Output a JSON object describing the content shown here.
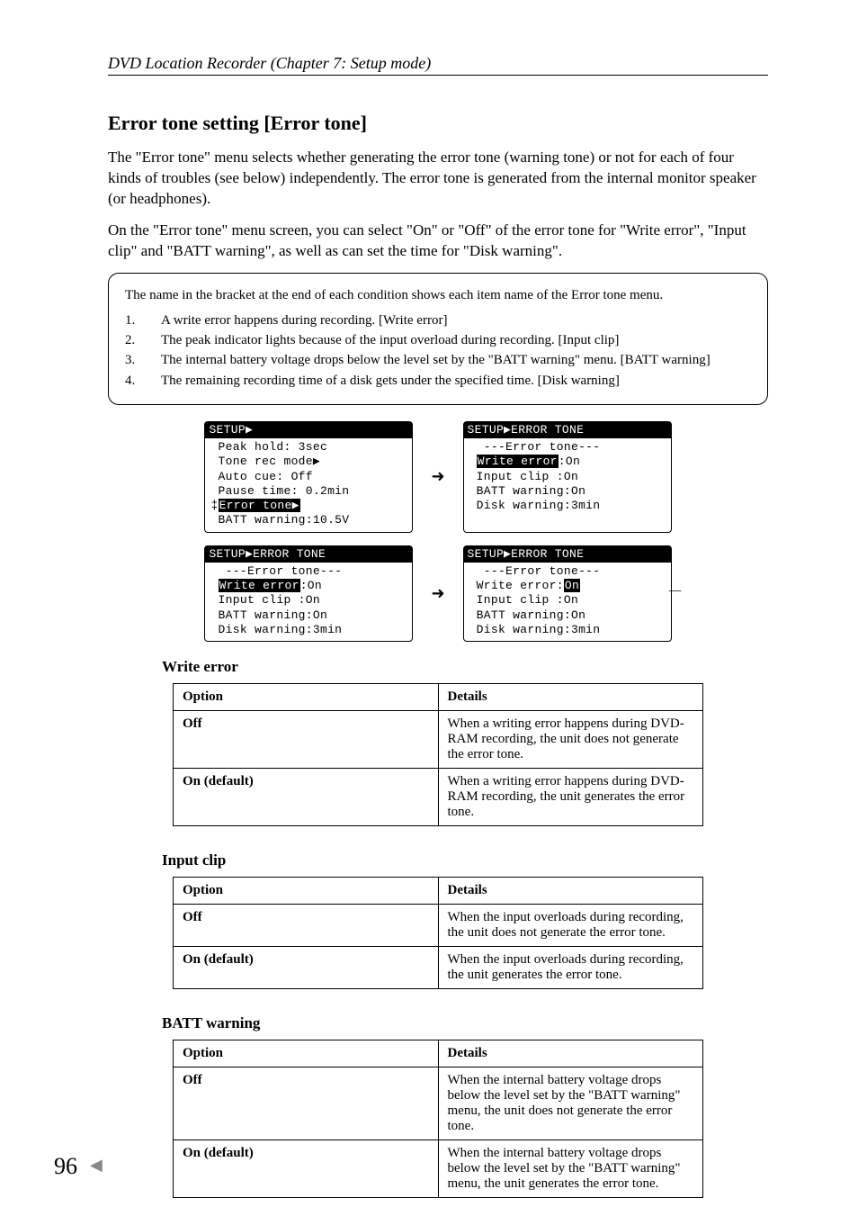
{
  "header": "DVD Location Recorder (Chapter 7: Setup mode)",
  "section_title": "Error tone setting [Error tone]",
  "p1": "The \"Error tone\" menu selects whether generating the error tone (warning tone) or not for each of four kinds of troubles (see below) independently. The error tone is generated from the internal monitor speaker (or headphones).",
  "p2": "On the \"Error tone\" menu screen, you can select \"On\" or \"Off\" of the error tone for \"Write error\", \"Input clip\" and \"BATT warning\", as well as can set the time for \"Disk warning\".",
  "note_intro": "The name in the bracket at the end of each condition shows each item name of the Error tone menu.",
  "note_items": [
    {
      "n": "1.",
      "t": "A write error happens during recording. [Write error]"
    },
    {
      "n": "2.",
      "t": "The peak indicator lights because of the input overload during recording. [Input clip]"
    },
    {
      "n": "3.",
      "t": "The internal battery voltage drops below the level set by the \"BATT warning\" menu. [BATT warning]"
    },
    {
      "n": "4.",
      "t": "The remaining recording time of a disk gets under the specified time. [Disk warning]"
    }
  ],
  "lcd1_title": "SETUP▶",
  "lcd1_lines": [
    " Peak hold: 3sec",
    " Tone rec mode▶",
    " Auto cue: Off",
    " Pause time: 0.2min",
    "‡[Error tone▶]",
    " BATT warning:10.5V"
  ],
  "lcd2_title": "SETUP▶ERROR TONE",
  "lcd2_lines": [
    "  ---Error tone---",
    " [Write error]:On",
    " Input clip :On",
    " BATT warning:On",
    " Disk warning:3min"
  ],
  "lcd3_title": "SETUP▶ERROR TONE",
  "lcd3_lines": [
    "  ---Error tone---",
    " [Write error]:On",
    " Input clip :On",
    " BATT warning:On",
    " Disk warning:3min"
  ],
  "lcd4_title": "SETUP▶ERROR TONE",
  "lcd4_lines": [
    "  ---Error tone---",
    " Write error:[On]",
    " Input clip :On",
    " BATT warning:On",
    " Disk warning:3min"
  ],
  "sub1": "Write error",
  "t1": {
    "h1": "Option",
    "h2": "Details",
    "r1a": "Off",
    "r1b": "When a writing error happens during DVD-RAM recording, the unit does not generate the error tone.",
    "r2a": "On (default)",
    "r2b": "When a writing error happens during DVD-RAM recording, the unit generates the error tone."
  },
  "sub2": "Input clip",
  "t2": {
    "h1": "Option",
    "h2": "Details",
    "r1a": "Off",
    "r1b": "When the input overloads during recording, the unit does not generate the error tone.",
    "r2a": "On (default)",
    "r2b": "When the input overloads during recording, the unit generates the error tone."
  },
  "sub3": "BATT warning",
  "t3": {
    "h1": "Option",
    "h2": "Details",
    "r1a": "Off",
    "r1b": "When the internal battery voltage drops below the level set by the \"BATT warning\" menu, the unit does not generate the error tone.",
    "r2a": "On (default)",
    "r2b": "When the internal battery voltage drops below the level set by the \"BATT warning\" menu, the unit generates the error tone."
  },
  "page_number": "96"
}
